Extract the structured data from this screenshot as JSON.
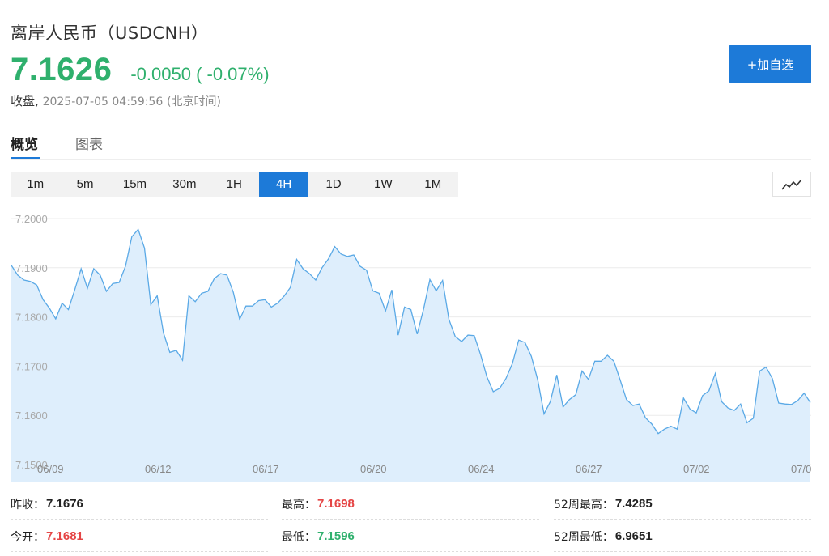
{
  "header": {
    "title": "离岸人民币（USDCNH）",
    "price": "7.1626",
    "change": "-0.0050 ( -0.07%)",
    "status": "收盘,",
    "timestamp": "2025-07-05 04:59:56",
    "timezone": "(北京时间)",
    "add_button": "+加自选"
  },
  "tabs": [
    {
      "label": "概览",
      "active": true
    },
    {
      "label": "图表",
      "active": false
    }
  ],
  "periods": [
    {
      "label": "1m",
      "active": false
    },
    {
      "label": "5m",
      "active": false
    },
    {
      "label": "15m",
      "active": false
    },
    {
      "label": "30m",
      "active": false
    },
    {
      "label": "1H",
      "active": false
    },
    {
      "label": "4H",
      "active": true
    },
    {
      "label": "1D",
      "active": false
    },
    {
      "label": "1W",
      "active": false
    },
    {
      "label": "1M",
      "active": false
    }
  ],
  "chart_type_icon": "line-chart-icon",
  "colors": {
    "up_green": "#2fb06d",
    "down_red": "#e54545",
    "accent_blue": "#1d7ad8",
    "line": "#5aa9e6",
    "area": "#deeefc"
  },
  "chart_data": {
    "type": "area",
    "title": "",
    "xlabel": "",
    "ylabel": "",
    "ylim": [
      7.15,
      7.2
    ],
    "y_ticks": [
      "7.2000",
      "7.1900",
      "7.1800",
      "7.1700",
      "7.1600",
      "7.1500"
    ],
    "x_ticks": [
      "06/09",
      "06/12",
      "06/17",
      "06/20",
      "06/24",
      "06/27",
      "07/02",
      "07/0"
    ],
    "grid": true,
    "series": [
      {
        "name": "",
        "values": [
          7.1905,
          7.1885,
          7.1875,
          7.1872,
          7.1865,
          7.1835,
          7.1818,
          7.1796,
          7.1828,
          7.1815,
          7.1855,
          7.1898,
          7.1858,
          7.1898,
          7.1885,
          7.1852,
          7.1868,
          7.187,
          7.1903,
          7.1963,
          7.1978,
          7.194,
          7.1825,
          7.1843,
          7.1767,
          7.1728,
          7.1732,
          7.1712,
          7.1843,
          7.1831,
          7.1848,
          7.1852,
          7.1878,
          7.1888,
          7.1885,
          7.185,
          7.1795,
          7.1822,
          7.1822,
          7.1833,
          7.1835,
          7.182,
          7.1828,
          7.1842,
          7.186,
          7.1917,
          7.1898,
          7.1888,
          7.1875,
          7.19,
          7.1918,
          7.1943,
          7.1928,
          7.1923,
          7.1926,
          7.1903,
          7.1895,
          7.1853,
          7.1848,
          7.1812,
          7.1855,
          7.1763,
          7.182,
          7.1815,
          7.1765,
          7.1816,
          7.1876,
          7.1853,
          7.1874,
          7.1795,
          7.176,
          7.175,
          7.1763,
          7.1762,
          7.1723,
          7.1678,
          7.1648,
          7.1655,
          7.1675,
          7.1705,
          7.1753,
          7.1748,
          7.172,
          7.1672,
          7.1603,
          7.1628,
          7.1682,
          7.1617,
          7.1632,
          7.1642,
          7.169,
          7.1673,
          7.171,
          7.171,
          7.1722,
          7.171,
          7.1672,
          7.1632,
          7.162,
          7.1623,
          7.1595,
          7.1582,
          7.1563,
          7.1572,
          7.1578,
          7.1572,
          7.1635,
          7.1613,
          7.1605,
          7.164,
          7.165,
          7.1685,
          7.1628,
          7.1615,
          7.161,
          7.1623,
          7.1585,
          7.1594,
          7.169,
          7.1698,
          7.1675,
          7.1625,
          7.1623,
          7.1622,
          7.163,
          7.1645,
          7.1626
        ]
      }
    ]
  },
  "stats": [
    {
      "label": "昨收：",
      "value": "7.1676",
      "color": "black"
    },
    {
      "label": "最高：",
      "value": "7.1698",
      "color": "red"
    },
    {
      "label": "52周最高：",
      "value": "7.4285",
      "color": "black"
    },
    {
      "label": "今开：",
      "value": "7.1681",
      "color": "red"
    },
    {
      "label": "最低：",
      "value": "7.1596",
      "color": "green"
    },
    {
      "label": "52周最低：",
      "value": "6.9651",
      "color": "black"
    }
  ]
}
